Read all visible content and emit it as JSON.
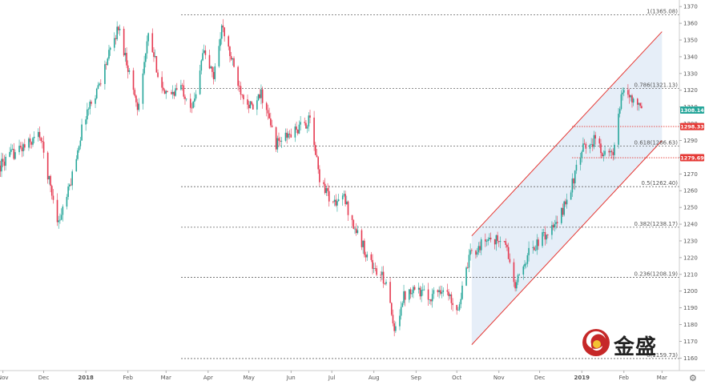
{
  "chart_data": {
    "type": "candlestick",
    "instrument": "XAUUSD",
    "ylim": [
      1153,
      1372
    ],
    "y_ticks": [
      1160,
      1170,
      1180,
      1190,
      1200,
      1210,
      1220,
      1230,
      1240,
      1250,
      1260,
      1270,
      1280,
      1290,
      1300,
      1310,
      1320,
      1330,
      1340,
      1350,
      1360,
      1370
    ],
    "x_ticks": [
      "Nov",
      "Dec",
      "2018",
      "Feb",
      "Mar",
      "Apr",
      "May",
      "Jun",
      "Jul",
      "Aug",
      "Sep",
      "Oct",
      "Nov",
      "Dec",
      "2019",
      "Feb",
      "Mar"
    ],
    "fib_levels": [
      {
        "label": "1(1365.08)",
        "value": 1365.08
      },
      {
        "label": "0.786(1321.13)",
        "value": 1321.13
      },
      {
        "label": "0.618(1286.63)",
        "value": 1286.63
      },
      {
        "label": "0.5(1262.40)",
        "value": 1262.4
      },
      {
        "label": "0.382(1238.17)",
        "value": 1238.17
      },
      {
        "label": "0.236(1208.19)",
        "value": 1208.19
      },
      {
        "label": "0(1159.73)",
        "value": 1159.73
      }
    ],
    "price_tags": [
      {
        "label": "1308.14",
        "value": 1308.14,
        "color": "#26a69a"
      },
      {
        "label": "1298.33",
        "value": 1298.33,
        "color": "#e53935"
      },
      {
        "label": "1279.69",
        "value": 1279.69,
        "color": "#e53935"
      }
    ],
    "horizontal_lines": [
      {
        "value": 1298.33,
        "color": "#e53935"
      },
      {
        "value": 1279.69,
        "color": "#e53935"
      }
    ],
    "channel": {
      "upper": {
        "from": [
          "2018-10-12",
          1233
        ],
        "to": [
          "2019-03-01",
          1355
        ]
      },
      "lower": {
        "from": [
          "2018-10-12",
          1168
        ],
        "to": [
          "2019-03-01",
          1290
        ]
      }
    },
    "price_path": [
      [
        "2017-10-30",
        1275
      ],
      [
        "2017-11-08",
        1282
      ],
      [
        "2017-11-20",
        1288
      ],
      [
        "2017-11-28",
        1294
      ],
      [
        "2017-12-06",
        1262
      ],
      [
        "2017-12-12",
        1241
      ],
      [
        "2017-12-20",
        1262
      ],
      [
        "2017-12-31",
        1304
      ],
      [
        "2018-01-10",
        1322
      ],
      [
        "2018-01-25",
        1358
      ],
      [
        "2018-02-08",
        1310
      ],
      [
        "2018-02-16",
        1352
      ],
      [
        "2018-02-28",
        1316
      ],
      [
        "2018-03-12",
        1322
      ],
      [
        "2018-03-21",
        1310
      ],
      [
        "2018-03-28",
        1344
      ],
      [
        "2018-04-05",
        1328
      ],
      [
        "2018-04-11",
        1358
      ],
      [
        "2018-04-24",
        1322
      ],
      [
        "2018-05-04",
        1308
      ],
      [
        "2018-05-10",
        1318
      ],
      [
        "2018-05-21",
        1288
      ],
      [
        "2018-06-01",
        1294
      ],
      [
        "2018-06-08",
        1298
      ],
      [
        "2018-06-15",
        1302
      ],
      [
        "2018-06-22",
        1268
      ],
      [
        "2018-07-02",
        1252
      ],
      [
        "2018-07-10",
        1256
      ],
      [
        "2018-07-16",
        1241
      ],
      [
        "2018-07-25",
        1225
      ],
      [
        "2018-08-02",
        1212
      ],
      [
        "2018-08-10",
        1206
      ],
      [
        "2018-08-16",
        1174
      ],
      [
        "2018-08-22",
        1196
      ],
      [
        "2018-08-30",
        1203
      ],
      [
        "2018-09-10",
        1196
      ],
      [
        "2018-09-20",
        1202
      ],
      [
        "2018-10-02",
        1190
      ],
      [
        "2018-10-11",
        1222
      ],
      [
        "2018-10-25",
        1232
      ],
      [
        "2018-11-06",
        1228
      ],
      [
        "2018-11-13",
        1202
      ],
      [
        "2018-11-22",
        1222
      ],
      [
        "2018-12-03",
        1232
      ],
      [
        "2018-12-14",
        1240
      ],
      [
        "2018-12-24",
        1262
      ],
      [
        "2019-01-02",
        1285
      ],
      [
        "2019-01-10",
        1290
      ],
      [
        "2019-01-18",
        1282
      ],
      [
        "2019-01-24",
        1281
      ],
      [
        "2019-01-31",
        1320
      ],
      [
        "2019-02-04",
        1318
      ],
      [
        "2019-02-14",
        1308
      ]
    ]
  },
  "logo": {
    "text": "金盛"
  }
}
